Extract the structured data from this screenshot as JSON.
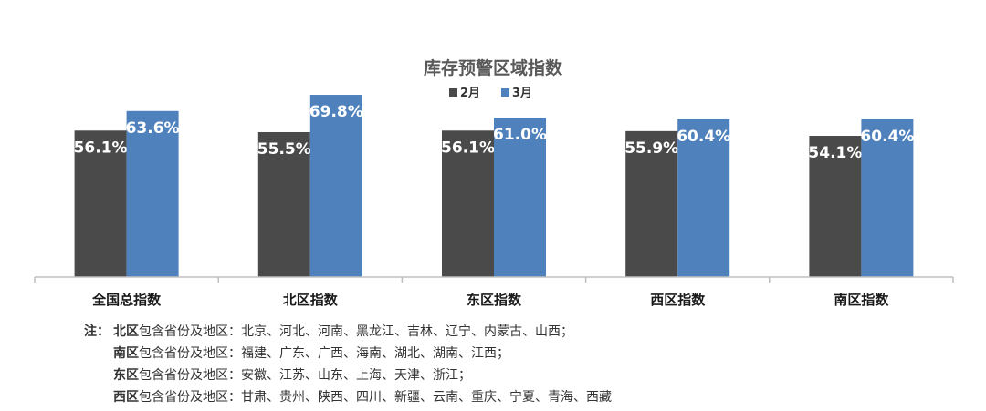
{
  "chart_data": {
    "type": "bar",
    "title": "库存预警区域指数",
    "categories": [
      "全国总指数",
      "北区指数",
      "东区指数",
      "西区指数",
      "南区指数"
    ],
    "series": [
      {
        "name": "2月",
        "color": "#4a4a4a",
        "values": [
          56.1,
          55.5,
          56.1,
          55.9,
          54.1
        ],
        "labels": [
          "56.1%",
          "55.5%",
          "56.1%",
          "55.9%",
          "54.1%"
        ]
      },
      {
        "name": "3月",
        "color": "#4f81bd",
        "values": [
          63.6,
          69.8,
          61.0,
          60.4,
          60.4
        ],
        "labels": [
          "63.6%",
          "69.8%",
          "61.0%",
          "60.4%",
          "60.4%"
        ]
      }
    ],
    "legend_position": "top-center",
    "grid": false,
    "y_axis_visible": false,
    "ylim": [
      0,
      74
    ]
  },
  "notes": {
    "prefix": "注：",
    "lines": [
      {
        "region": "北区",
        "text": "包含省份及地区：北京、河北、河南、黑龙江、吉林、辽宁、内蒙古、山西；"
      },
      {
        "region": "南区",
        "text": "包含省份及地区：福建、广东、广西、海南、湖北、湖南、江西；"
      },
      {
        "region": "东区",
        "text": "包含省份及地区：安徽、江苏、山东、上海、天津、浙江；"
      },
      {
        "region": "西区",
        "text": "包含省份及地区：甘肃、贵州、陕西、四川、新疆、云南、重庆、宁夏、青海、西藏"
      }
    ]
  }
}
